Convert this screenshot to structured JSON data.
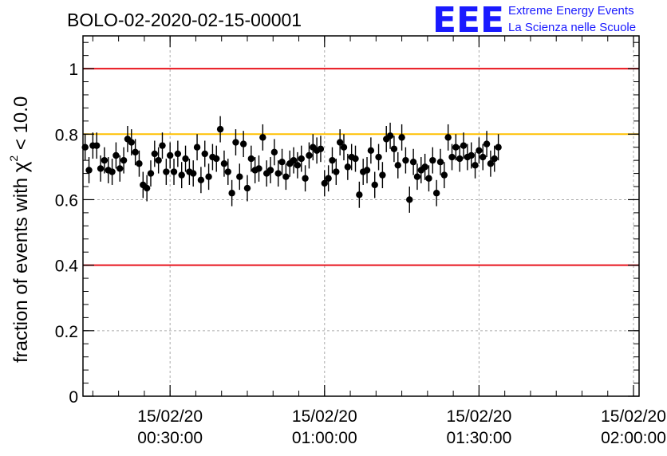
{
  "header": {
    "title": "BOLO-02-2020-02-15-00001",
    "logo_letters": "EEE",
    "logo_line1": "Extreme Energy Events",
    "logo_line2": "La Scienza nelle Scuole"
  },
  "colors": {
    "threshold_red": "#e8141d",
    "reference_orange": "#ffc000",
    "marker": "#000000",
    "logo_blue": "#1a1aff"
  },
  "chart_data": {
    "type": "scatter",
    "title": "BOLO-02-2020-02-15-00001",
    "ylabel_prefix": "fraction of events with ",
    "ylabel_symbol": "χ",
    "ylabel_exponent": "2",
    "ylabel_suffix": " < 10.0",
    "xlabel": "",
    "xlim": [
      "2020-02-15 00:13:05",
      "2020-02-15 02:01:05"
    ],
    "ylim": [
      0,
      1.1
    ],
    "yticks": [
      {
        "value": 0,
        "label": "0"
      },
      {
        "value": 0.2,
        "label": "0.2"
      },
      {
        "value": 0.4,
        "label": "0.4"
      },
      {
        "value": 0.6,
        "label": "0.6"
      },
      {
        "value": 0.8,
        "label": "0.8"
      },
      {
        "value": 1.0,
        "label": "1"
      }
    ],
    "xticks": [
      {
        "value": "2020-02-15 00:30:00",
        "date": "15/02/20",
        "time": "00:30:00"
      },
      {
        "value": "2020-02-15 01:00:00",
        "date": "15/02/20",
        "time": "01:00:00"
      },
      {
        "value": "2020-02-15 01:30:00",
        "date": "15/02/20",
        "time": "01:30:00"
      },
      {
        "value": "2020-02-15 02:00:00",
        "date": "15/02/20",
        "time": "02:00:00"
      }
    ],
    "grid": true,
    "hlines": [
      {
        "y": 1.0,
        "color": "#e8141d"
      },
      {
        "y": 0.8,
        "color": "#ffc000"
      },
      {
        "y": 0.4,
        "color": "#e8141d"
      }
    ],
    "points": {
      "t_start": "2020-02-15 00:13:30",
      "t_step_seconds": 45,
      "y": [
        0.76,
        0.69,
        0.765,
        0.765,
        0.695,
        0.72,
        0.69,
        0.685,
        0.735,
        0.695,
        0.72,
        0.785,
        0.775,
        0.745,
        0.71,
        0.645,
        0.635,
        0.68,
        0.74,
        0.72,
        0.765,
        0.685,
        0.735,
        0.685,
        0.74,
        0.675,
        0.725,
        0.685,
        0.68,
        0.76,
        0.66,
        0.74,
        0.67,
        0.73,
        0.725,
        0.815,
        0.71,
        0.685,
        0.62,
        0.775,
        0.67,
        0.77,
        0.635,
        0.725,
        0.69,
        0.695,
        0.79,
        0.68,
        0.69,
        0.745,
        0.68,
        0.715,
        0.67,
        0.71,
        0.72,
        0.705,
        0.725,
        0.665,
        0.735,
        0.76,
        0.75,
        0.755,
        0.65,
        0.665,
        0.72,
        0.685,
        0.775,
        0.76,
        0.7,
        0.73,
        0.725,
        0.615,
        0.685,
        0.69,
        0.75,
        0.645,
        0.73,
        0.675,
        0.785,
        0.795,
        0.755,
        0.705,
        0.79,
        0.72,
        0.6,
        0.715,
        0.67,
        0.69,
        0.7,
        0.665,
        0.72,
        0.62,
        0.715,
        0.675,
        0.79,
        0.73,
        0.76,
        0.725,
        0.765,
        0.73,
        0.735,
        0.705,
        0.75,
        0.73,
        0.77,
        0.71,
        0.725,
        0.76
      ],
      "yerr": 0.04
    }
  }
}
